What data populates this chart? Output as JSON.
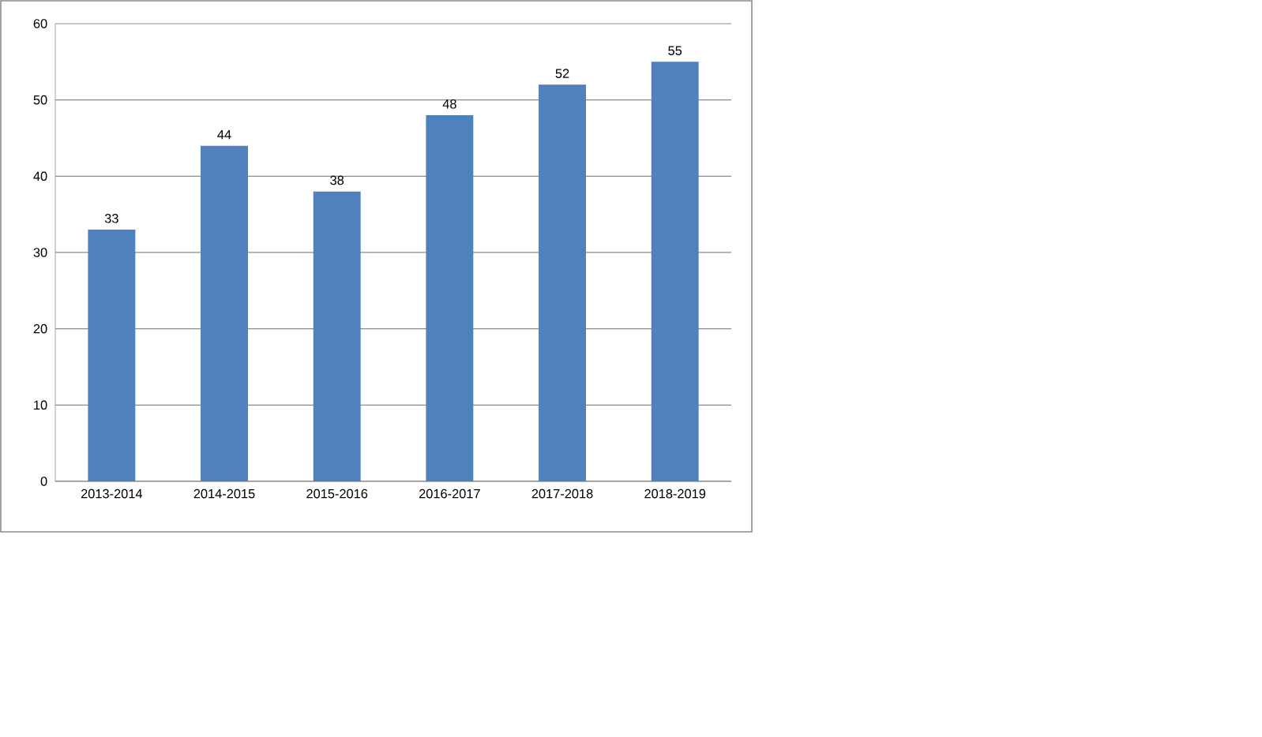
{
  "chart_data": {
    "type": "bar",
    "categories": [
      "2013-2014",
      "2014-2015",
      "2015-2016",
      "2016-2017",
      "2017-2018",
      "2018-2019"
    ],
    "values": [
      33,
      44,
      38,
      48,
      52,
      55
    ],
    "color": "#4f81bd",
    "ylim": [
      0,
      60
    ],
    "yticks": [
      0,
      10,
      20,
      30,
      40,
      50,
      60
    ],
    "grid": "y",
    "data_labels": true
  }
}
